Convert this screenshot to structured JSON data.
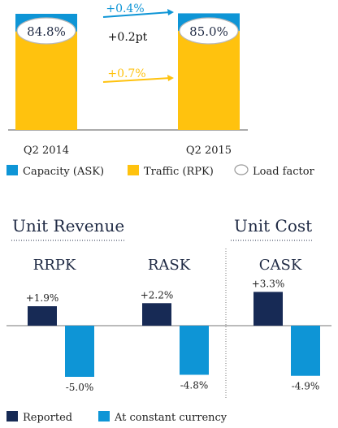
{
  "colors": {
    "capacity": "#0e95d6",
    "traffic": "#ffc20e",
    "reported": "#172a55",
    "constant": "#0e95d6",
    "navy_text": "#1f2a44",
    "axis": "#555555"
  },
  "chart_data": [
    {
      "type": "bar",
      "categories": [
        "Q2 2014",
        "Q2 2015"
      ],
      "series": [
        {
          "name": "Capacity (ASK)",
          "values": [
            100,
            100.4
          ]
        },
        {
          "name": "Traffic (RPK)",
          "values": [
            84.8,
            85.4
          ]
        }
      ],
      "load_factor": [
        84.8,
        85.0
      ],
      "load_factor_labels": [
        "84.8%",
        "85.0%"
      ],
      "annotations": [
        {
          "text": "+0.4%",
          "series": "Capacity (ASK)"
        },
        {
          "text": "+0.2pt",
          "series": "Load factor"
        },
        {
          "text": "+0.7%",
          "series": "Traffic (RPK)"
        }
      ],
      "legend": [
        "Capacity (ASK)",
        "Traffic (RPK)",
        "Load factor"
      ],
      "legend_placement": "bottom"
    },
    {
      "type": "bar",
      "title": "Unit Revenue",
      "categories": [
        "RRPK",
        "RASK"
      ],
      "series": [
        {
          "name": "Reported",
          "values": [
            1.9,
            2.2
          ]
        },
        {
          "name": "At constant currency",
          "values": [
            -5.0,
            -4.8
          ]
        }
      ],
      "data_labels": [
        [
          "+1.9%",
          "+2.2%"
        ],
        [
          "-5.0%",
          "-4.8%"
        ]
      ]
    },
    {
      "type": "bar",
      "title": "Unit Cost",
      "categories": [
        "CASK"
      ],
      "series": [
        {
          "name": "Reported",
          "values": [
            3.3
          ]
        },
        {
          "name": "At constant currency",
          "values": [
            -4.9
          ]
        }
      ],
      "data_labels": [
        [
          "+3.3%"
        ],
        [
          "-4.9%"
        ]
      ]
    }
  ],
  "bottom_legend": [
    "Reported",
    "At constant currency"
  ]
}
